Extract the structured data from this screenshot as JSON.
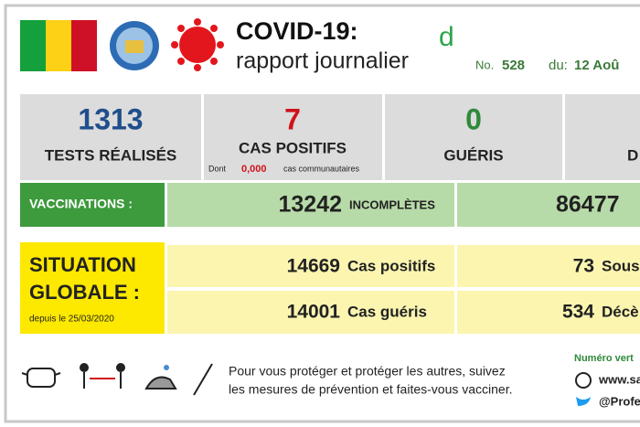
{
  "header": {
    "title": "COVID-19:",
    "subtitle": "rapport journalier",
    "logo_letter": "d",
    "number_label": "No.",
    "number": 528,
    "date_label": "du:",
    "date": "12 Aoû"
  },
  "stats": [
    {
      "value": 1313,
      "label": "TESTS RÉALISÉS"
    },
    {
      "value": 7,
      "label": "CAS POSITIFS",
      "note_prefix": "Dont",
      "note_value": "0,000",
      "note_suffix": "cas communautaires"
    },
    {
      "value": 0,
      "label": "GUÉRIS"
    },
    {
      "label": "D"
    }
  ],
  "vaccinations": {
    "label": "VACCINATIONS :",
    "incomplete_value": 13242,
    "incomplete_label": "INCOMPLÈTES",
    "complete_value": 86477
  },
  "situation": {
    "title_line1": "SITUATION",
    "title_line2": "GLOBALE :",
    "since": "depuis le 25/03/2020",
    "rows": [
      {
        "value": 14669,
        "label": "Cas positifs",
        "value2": 73,
        "label2": "Sous"
      },
      {
        "value": 14001,
        "label": "Cas guéris",
        "value2": 534,
        "label2": "Décè"
      }
    ]
  },
  "footer": {
    "line1": "Pour vous protéger et protéger les autres, suivez",
    "line2": "les mesures de prévention et faites-vous vacciner.",
    "hotline": "Numéro vert",
    "website": "www.sa",
    "twitter": "@Profes"
  }
}
